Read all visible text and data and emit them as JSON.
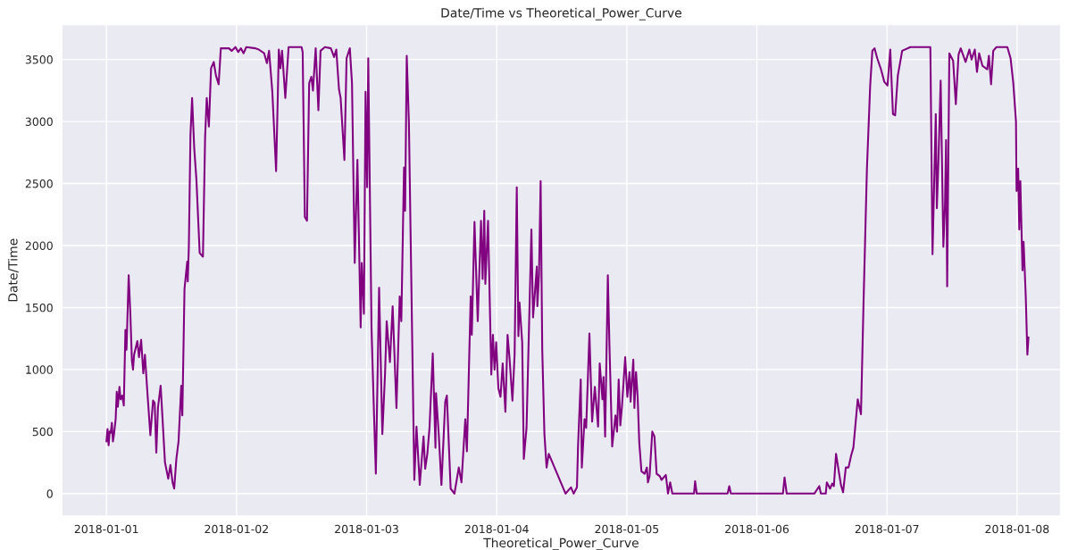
{
  "chart_data": {
    "type": "line",
    "title": "Date/Time vs Theoretical_Power_Curve",
    "xlabel": "Theoretical_Power_Curve",
    "ylabel": "Date/Time",
    "x": [
      "2018-01-01T00:00",
      "2018-01-01T00:12",
      "2018-01-01T00:24",
      "2018-01-01T00:36",
      "2018-01-01T00:48",
      "2018-01-01T01:00",
      "2018-01-01T01:12",
      "2018-01-01T01:24",
      "2018-01-01T01:42",
      "2018-01-01T01:54",
      "2018-01-01T02:06",
      "2018-01-01T02:24",
      "2018-01-01T02:36",
      "2018-01-01T02:54",
      "2018-01-01T03:12",
      "2018-01-01T03:30",
      "2018-01-01T03:42",
      "2018-01-01T04:06",
      "2018-01-01T04:24",
      "2018-01-01T04:42",
      "2018-01-01T04:54",
      "2018-01-01T05:06",
      "2018-01-01T05:42",
      "2018-01-01T06:00",
      "2018-01-01T06:24",
      "2018-01-01T06:48",
      "2018-01-01T07:06",
      "2018-01-01T07:30",
      "2018-01-01T08:06",
      "2018-01-01T08:36",
      "2018-01-01T08:54",
      "2018-01-01T09:12",
      "2018-01-01T09:30",
      "2018-01-01T10:00",
      "2018-01-01T10:18",
      "2018-01-01T10:48",
      "2018-01-01T11:24",
      "2018-01-01T11:48",
      "2018-01-01T12:12",
      "2018-01-01T12:30",
      "2018-01-01T12:54",
      "2018-01-01T13:18",
      "2018-01-01T13:48",
      "2018-01-01T14:00",
      "2018-01-01T14:24",
      "2018-01-01T14:54",
      "2018-01-01T15:00",
      "2018-01-01T15:12",
      "2018-01-01T15:30",
      "2018-01-01T15:48",
      "2018-01-01T16:12",
      "2018-01-01T16:36",
      "2018-01-01T17:12",
      "2018-01-01T17:48",
      "2018-01-01T18:12",
      "2018-01-01T18:30",
      "2018-01-01T18:54",
      "2018-01-01T19:18",
      "2018-01-01T19:48",
      "2018-01-01T20:12",
      "2018-01-01T20:42",
      "2018-01-01T21:06",
      "2018-01-01T22:36",
      "2018-01-01T23:06",
      "2018-01-01T23:48",
      "2018-01-02T00:18",
      "2018-01-02T00:48",
      "2018-01-02T01:18",
      "2018-01-02T01:48",
      "2018-01-02T03:30",
      "2018-01-02T04:06",
      "2018-01-02T05:06",
      "2018-01-02T05:36",
      "2018-01-02T06:00",
      "2018-01-02T06:36",
      "2018-01-02T07:18",
      "2018-01-02T07:48",
      "2018-01-02T08:06",
      "2018-01-02T08:24",
      "2018-01-02T09:00",
      "2018-01-02T09:30",
      "2018-01-02T09:36",
      "2018-01-02T12:00",
      "2018-01-02T12:12",
      "2018-01-02T12:36",
      "2018-01-02T13:00",
      "2018-01-02T13:24",
      "2018-01-02T13:48",
      "2018-01-02T14:06",
      "2018-01-02T14:36",
      "2018-01-02T15:06",
      "2018-01-02T15:30",
      "2018-01-02T16:18",
      "2018-01-02T17:24",
      "2018-01-02T18:00",
      "2018-01-02T18:24",
      "2018-01-02T18:54",
      "2018-01-02T19:12",
      "2018-01-02T19:54",
      "2018-01-02T20:18",
      "2018-01-02T20:54",
      "2018-01-02T21:18",
      "2018-01-02T21:48",
      "2018-01-02T22:18",
      "2018-01-02T22:54",
      "2018-01-02T23:06",
      "2018-01-02T23:30",
      "2018-01-02T23:48",
      "2018-01-03T00:06",
      "2018-01-03T00:18",
      "2018-01-03T00:54",
      "2018-01-03T01:18",
      "2018-01-03T01:42",
      "2018-01-03T02:18",
      "2018-01-03T02:54",
      "2018-01-03T03:24",
      "2018-01-03T03:42",
      "2018-01-03T04:18",
      "2018-01-03T04:48",
      "2018-01-03T05:30",
      "2018-01-03T06:06",
      "2018-01-03T06:24",
      "2018-01-03T06:54",
      "2018-01-03T07:06",
      "2018-01-03T07:24",
      "2018-01-03T07:48",
      "2018-01-03T08:48",
      "2018-01-03T09:12",
      "2018-01-03T09:48",
      "2018-01-03T10:30",
      "2018-01-03T10:48",
      "2018-01-03T11:12",
      "2018-01-03T11:36",
      "2018-01-03T12:12",
      "2018-01-03T12:42",
      "2018-01-03T12:48",
      "2018-01-03T13:18",
      "2018-01-03T13:48",
      "2018-01-03T14:30",
      "2018-01-03T14:48",
      "2018-01-03T15:30",
      "2018-01-03T16:12",
      "2018-01-03T17:00",
      "2018-01-03T17:30",
      "2018-01-03T18:12",
      "2018-01-03T18:30",
      "2018-01-03T19:12",
      "2018-01-03T19:24",
      "2018-01-03T19:54",
      "2018-01-03T20:30",
      "2018-01-03T21:06",
      "2018-01-03T21:24",
      "2018-01-03T21:42",
      "2018-01-03T21:54",
      "2018-01-03T22:24",
      "2018-01-03T23:00",
      "2018-01-03T23:18",
      "2018-01-03T23:36",
      "2018-01-03T23:54",
      "2018-01-04T00:18",
      "2018-01-04T00:42",
      "2018-01-04T01:06",
      "2018-01-04T01:36",
      "2018-01-04T02:00",
      "2018-01-04T02:24",
      "2018-01-04T02:54",
      "2018-01-04T03:18",
      "2018-01-04T03:42",
      "2018-01-04T04:00",
      "2018-01-04T04:12",
      "2018-01-04T04:42",
      "2018-01-04T05:00",
      "2018-01-04T05:30",
      "2018-01-04T06:24",
      "2018-01-04T06:42",
      "2018-01-04T07:24",
      "2018-01-04T07:30",
      "2018-01-04T07:48",
      "2018-01-04T08:06",
      "2018-01-04T08:24",
      "2018-01-04T08:48",
      "2018-01-04T09:12",
      "2018-01-04T09:36",
      "2018-01-04T12:42",
      "2018-01-04T13:42",
      "2018-01-04T14:12",
      "2018-01-04T14:48",
      "2018-01-04T15:00",
      "2018-01-04T15:30",
      "2018-01-04T15:42",
      "2018-01-04T16:12",
      "2018-01-04T16:30",
      "2018-01-04T17:06",
      "2018-01-04T17:36",
      "2018-01-04T18:06",
      "2018-01-04T18:42",
      "2018-01-04T19:00",
      "2018-01-04T19:30",
      "2018-01-04T19:42",
      "2018-01-04T20:00",
      "2018-01-04T20:30",
      "2018-01-04T20:48",
      "2018-01-04T21:18",
      "2018-01-04T21:54",
      "2018-01-04T22:12",
      "2018-01-04T22:30",
      "2018-01-04T22:48",
      "2018-01-04T23:06",
      "2018-01-04T23:42",
      "2018-01-05T00:06",
      "2018-01-05T00:30",
      "2018-01-05T00:42",
      "2018-01-05T01:12",
      "2018-01-05T01:24",
      "2018-01-05T01:42",
      "2018-01-05T02:00",
      "2018-01-05T02:18",
      "2018-01-05T02:42",
      "2018-01-05T03:18",
      "2018-01-05T03:42",
      "2018-01-05T03:54",
      "2018-01-05T04:12",
      "2018-01-05T04:42",
      "2018-01-05T05:06",
      "2018-01-05T05:30",
      "2018-01-05T06:06",
      "2018-01-05T06:24",
      "2018-01-05T07:12",
      "2018-01-05T07:36",
      "2018-01-05T08:00",
      "2018-01-05T08:24",
      "2018-01-05T12:24",
      "2018-01-05T12:36",
      "2018-01-05T12:54",
      "2018-01-05T18:36",
      "2018-01-05T18:54",
      "2018-01-05T19:12",
      "2018-01-06T04:48",
      "2018-01-06T05:06",
      "2018-01-06T05:30",
      "2018-01-06T10:36",
      "2018-01-06T11:30",
      "2018-01-06T11:48",
      "2018-01-06T12:42",
      "2018-01-06T12:54",
      "2018-01-06T13:30",
      "2018-01-06T13:54",
      "2018-01-06T14:12",
      "2018-01-06T14:36",
      "2018-01-06T15:30",
      "2018-01-06T15:54",
      "2018-01-06T16:24",
      "2018-01-06T16:54",
      "2018-01-06T17:24",
      "2018-01-06T17:48",
      "2018-01-06T18:36",
      "2018-01-06T19:12",
      "2018-01-06T19:42",
      "2018-01-06T20:18",
      "2018-01-06T20:54",
      "2018-01-06T21:18",
      "2018-01-06T21:42",
      "2018-01-06T22:12",
      "2018-01-06T22:54",
      "2018-01-06T23:30",
      "2018-01-07T00:06",
      "2018-01-07T00:36",
      "2018-01-07T01:06",
      "2018-01-07T01:30",
      "2018-01-07T02:00",
      "2018-01-07T02:48",
      "2018-01-07T04:18",
      "2018-01-07T08:00",
      "2018-01-07T08:24",
      "2018-01-07T09:00",
      "2018-01-07T09:12",
      "2018-01-07T09:30",
      "2018-01-07T09:54",
      "2018-01-07T10:24",
      "2018-01-07T10:42",
      "2018-01-07T10:54",
      "2018-01-07T11:06",
      "2018-01-07T11:30",
      "2018-01-07T12:12",
      "2018-01-07T12:42",
      "2018-01-07T13:12",
      "2018-01-07T13:36",
      "2018-01-07T14:30",
      "2018-01-07T15:12",
      "2018-01-07T15:36",
      "2018-01-07T16:12",
      "2018-01-07T16:36",
      "2018-01-07T17:00",
      "2018-01-07T17:36",
      "2018-01-07T18:30",
      "2018-01-07T18:48",
      "2018-01-07T19:12",
      "2018-01-07T19:36",
      "2018-01-07T20:12",
      "2018-01-07T22:12",
      "2018-01-07T22:48",
      "2018-01-07T23:18",
      "2018-01-07T23:48",
      "2018-01-07T23:54",
      "2018-01-08T00:12",
      "2018-01-08T00:24",
      "2018-01-08T00:36",
      "2018-01-08T01:00",
      "2018-01-08T01:12",
      "2018-01-08T01:36",
      "2018-01-08T01:54",
      "2018-01-08T02:06"
    ],
    "series": [
      {
        "color": "#800080",
        "values": [
          420,
          520,
          390,
          500,
          490,
          570,
          420,
          480,
          600,
          820,
          700,
          860,
          760,
          790,
          710,
          1320,
          1160,
          1760,
          1460,
          1070,
          1000,
          1120,
          1230,
          1100,
          1240,
          970,
          1120,
          850,
          470,
          750,
          730,
          330,
          690,
          870,
          640,
          250,
          120,
          230,
          90,
          40,
          280,
          420,
          870,
          630,
          1650,
          1870,
          1710,
          1990,
          2890,
          3190,
          2780,
          2530,
          1940,
          1910,
          2870,
          3190,
          2960,
          3430,
          3480,
          3370,
          3300,
          3590,
          3590,
          3570,
          3600,
          3560,
          3590,
          3550,
          3600,
          3590,
          3580,
          3550,
          3470,
          3570,
          3240,
          2600,
          3580,
          3430,
          3570,
          3190,
          3530,
          3600,
          3600,
          3560,
          2230,
          2200,
          3310,
          3360,
          3250,
          3590,
          3090,
          3570,
          3600,
          3590,
          3520,
          3580,
          3260,
          3190,
          2690,
          3510,
          3590,
          3310,
          1860,
          2690,
          1340,
          1860,
          1450,
          3240,
          2470,
          3510,
          1340,
          730,
          160,
          1660,
          480,
          970,
          1390,
          1060,
          1510,
          690,
          1590,
          1390,
          2630,
          2280,
          3530,
          2990,
          110,
          540,
          70,
          460,
          200,
          320,
          530,
          1130,
          370,
          810,
          480,
          70,
          740,
          790,
          40,
          0,
          210,
          90,
          600,
          340,
          1590,
          1280,
          2190,
          1390,
          2200,
          1730,
          2280,
          1690,
          2200,
          960,
          1280,
          1000,
          1220,
          850,
          780,
          1050,
          660,
          1280,
          1070,
          750,
          1120,
          2470,
          1270,
          1540,
          1220,
          280,
          530,
          2130,
          1420,
          1830,
          1510,
          1760,
          2520,
          1160,
          480,
          210,
          320,
          0,
          50,
          0,
          50,
          380,
          920,
          210,
          600,
          530,
          1290,
          580,
          860,
          540,
          1050,
          760,
          940,
          460,
          1760,
          1190,
          380,
          630,
          500,
          920,
          550,
          700,
          1100,
          780,
          980,
          740,
          1080,
          690,
          980,
          780,
          410,
          180,
          160,
          210,
          90,
          140,
          500,
          460,
          160,
          140,
          110,
          150,
          0,
          90,
          0,
          0,
          100,
          0,
          0,
          60,
          0,
          0,
          130,
          0,
          0,
          60,
          0,
          0,
          90,
          40,
          80,
          60,
          320,
          70,
          10,
          210,
          210,
          310,
          370,
          760,
          640,
          1590,
          2620,
          3290,
          3570,
          3590,
          3510,
          3420,
          3320,
          3290,
          3580,
          3060,
          3050,
          3370,
          3570,
          3600,
          3600,
          1930,
          3060,
          2300,
          2690,
          3330,
          1990,
          2330,
          2850,
          1670,
          3550,
          3490,
          3140,
          3540,
          3590,
          3480,
          3580,
          3500,
          3580,
          3400,
          3550,
          3450,
          3420,
          3530,
          3300,
          3570,
          3600,
          3600,
          3510,
          3310,
          3000,
          2440,
          2620,
          2130,
          2520,
          1800,
          2030,
          1590,
          1120,
          1260
        ]
      }
    ],
    "xlim": [
      "2017-12-31T15:48",
      "2018-01-08T08:00"
    ],
    "xticks": [
      "2018-01-01",
      "2018-01-02",
      "2018-01-03",
      "2018-01-04",
      "2018-01-05",
      "2018-01-06",
      "2018-01-07",
      "2018-01-08"
    ],
    "ylim": [
      -180,
      3780
    ],
    "yticks": [
      0,
      500,
      1000,
      1500,
      2000,
      2500,
      3000,
      3500
    ],
    "grid": true,
    "line_style": "solid"
  }
}
